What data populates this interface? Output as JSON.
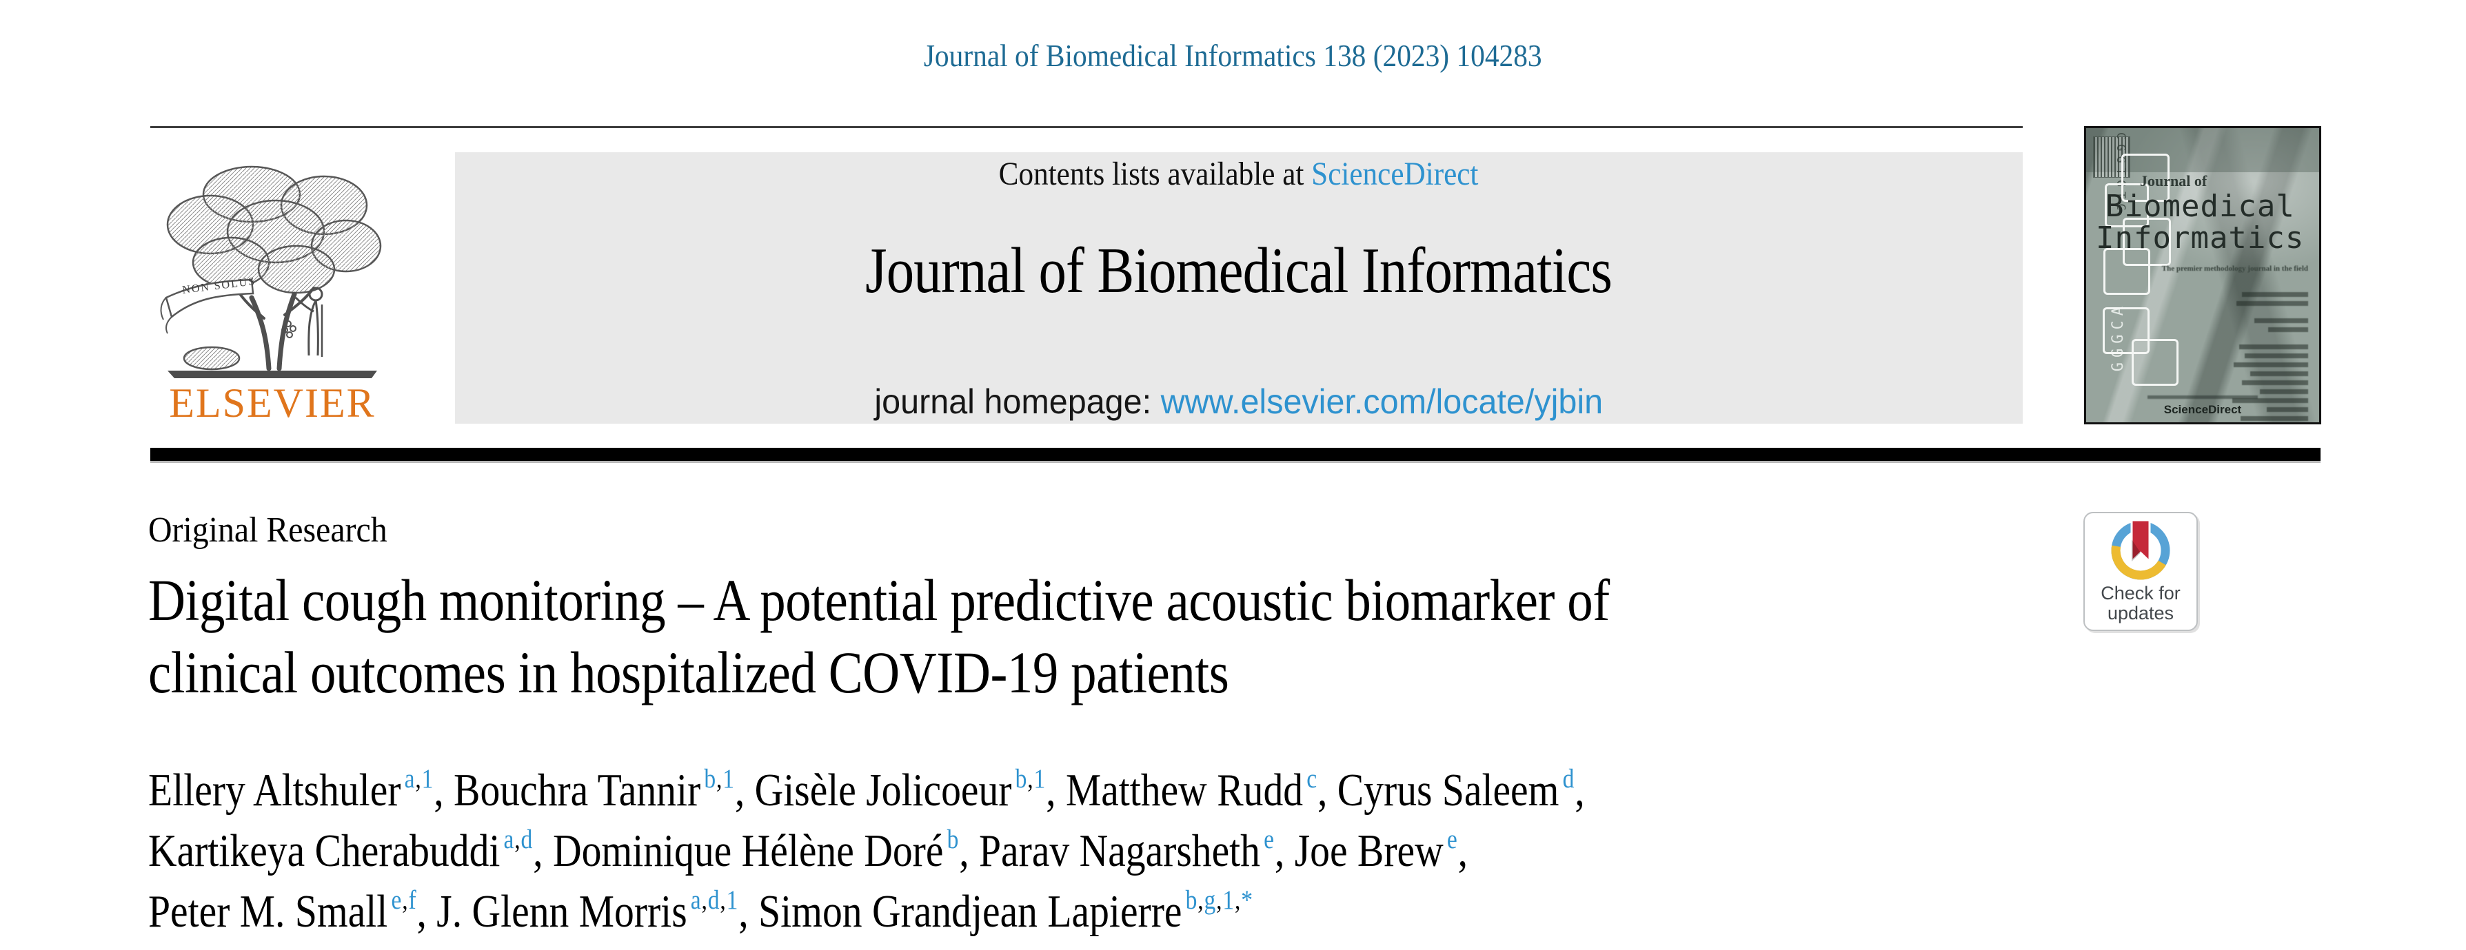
{
  "citation": {
    "text": "Journal of Biomedical Informatics 138 (2023) 104283",
    "color": "#1e6b94"
  },
  "banner": {
    "contents_prefix": "Contents lists available at ",
    "sciencedirect": "ScienceDirect",
    "journal_name": "Journal of Biomedical Informatics",
    "homepage_prefix": "journal homepage: ",
    "homepage_url": "www.elsevier.com/locate/yjbin",
    "bg_color": "#e9e9e9",
    "link_color": "#2e92cf"
  },
  "elsevier": {
    "wordmark": "ELSEVIER",
    "banner_text": "NON SOLUS",
    "orange": "#e0751c"
  },
  "cover": {
    "title_line1": "Journal of",
    "title_line2": "Biomedical",
    "title_line3": "Informatics",
    "tagline": "The premier methodology journal in the field",
    "sciencedirect": "ScienceDirect",
    "dna_top": "CGGTGTC",
    "dna_bottom": "GGGCA"
  },
  "article": {
    "section_label": "Original Research",
    "title_line1": "Digital cough monitoring – A potential predictive acoustic biomarker of",
    "title_line2": "clinical outcomes in hospitalized COVID-19 patients"
  },
  "authors": {
    "sup_color": "#2e92cf",
    "list": [
      {
        "name": "Ellery Altshuler",
        "sups": [
          "a",
          "1"
        ],
        "line": 1
      },
      {
        "name": "Bouchra Tannir",
        "sups": [
          "b",
          "1"
        ],
        "line": 1
      },
      {
        "name": "Gisèle Jolicoeur",
        "sups": [
          "b",
          "1"
        ],
        "line": 1
      },
      {
        "name": "Matthew Rudd",
        "sups": [
          "c"
        ],
        "line": 1
      },
      {
        "name": "Cyrus Saleem",
        "sups": [
          "d"
        ],
        "line": 1
      },
      {
        "name": "Kartikeya Cherabuddi",
        "sups": [
          "a",
          "d"
        ],
        "line": 2
      },
      {
        "name": "Dominique Hélène Doré",
        "sups": [
          "b"
        ],
        "line": 2
      },
      {
        "name": "Parav Nagarsheth",
        "sups": [
          "e"
        ],
        "line": 2
      },
      {
        "name": "Joe Brew",
        "sups": [
          "e"
        ],
        "line": 2
      },
      {
        "name": "Peter M. Small",
        "sups": [
          "e",
          "f"
        ],
        "line": 3
      },
      {
        "name": "J. Glenn Morris",
        "sups": [
          "a",
          "d",
          "1"
        ],
        "line": 3
      },
      {
        "name": "Simon Grandjean Lapierre",
        "sups": [
          "b",
          "g",
          "1",
          "*"
        ],
        "line": 3
      }
    ]
  },
  "badge": {
    "line1": "Check for",
    "line2": "updates",
    "ring_blue": "#57a3d6",
    "ring_yellow": "#edbb31",
    "bookmark_red": "#c5293a"
  }
}
